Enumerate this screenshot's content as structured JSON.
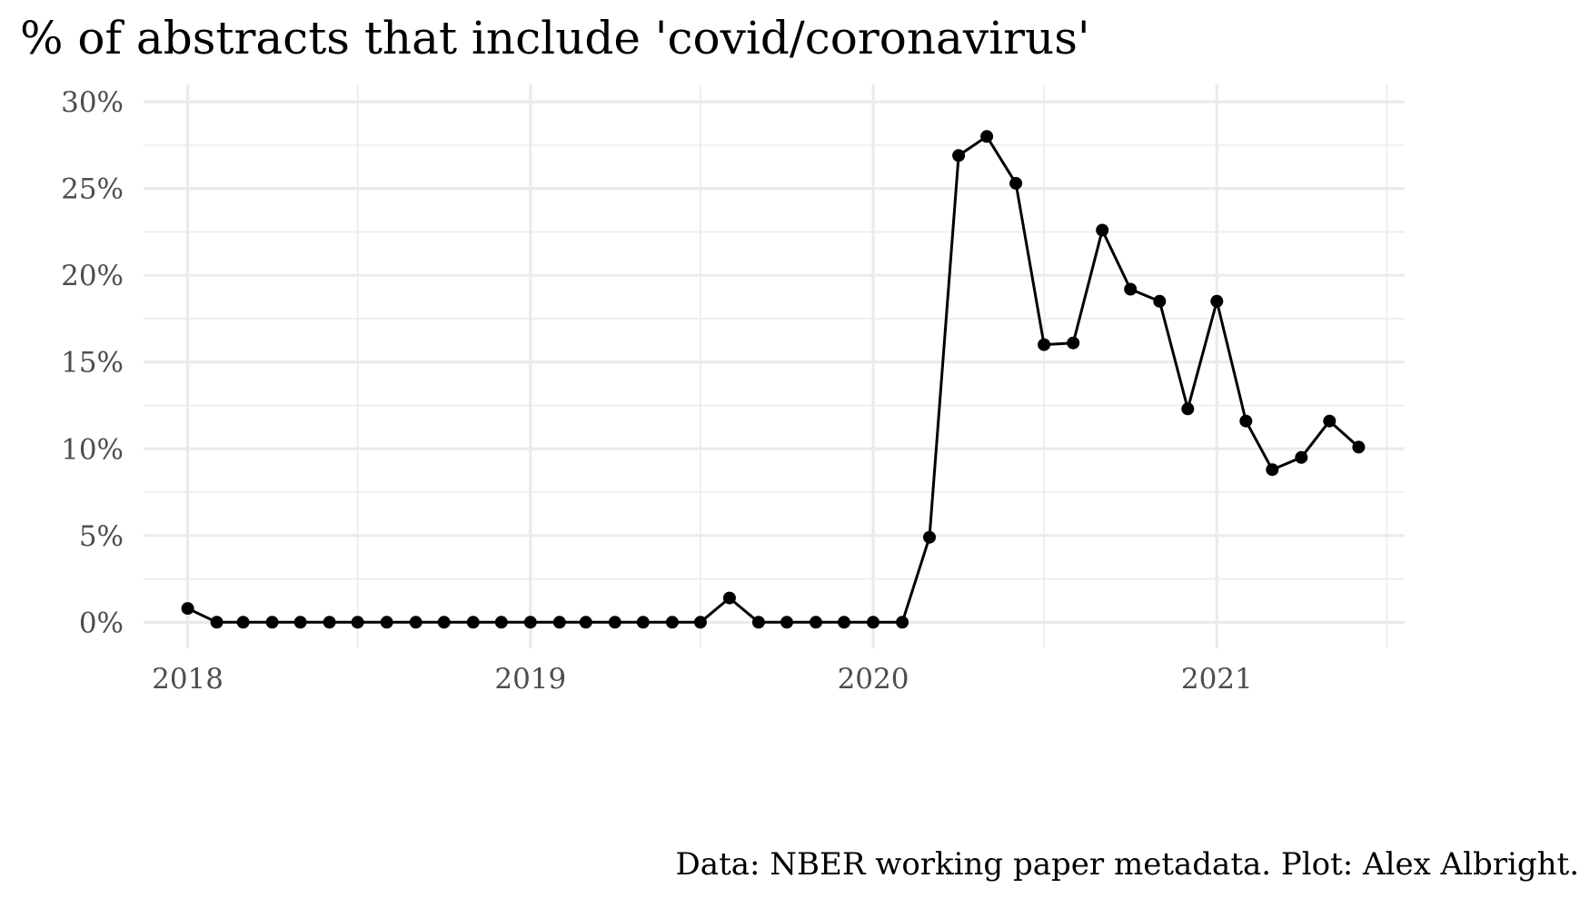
{
  "chart_data": {
    "type": "line",
    "title": "% of abstracts that include 'covid/coronavirus'",
    "caption": "Data: NBER working paper metadata. Plot: Alex Albright.",
    "xlabel": "",
    "ylabel": "",
    "x_unit": "month",
    "xlim": [
      "2017-11-15",
      "2021-07-20"
    ],
    "ylim": [
      -0.015,
      0.31
    ],
    "x_ticks": [
      {
        "value": "2018-01-01",
        "label": "2018"
      },
      {
        "value": "2019-01-01",
        "label": "2019"
      },
      {
        "value": "2020-01-01",
        "label": "2020"
      },
      {
        "value": "2021-01-01",
        "label": "2021"
      }
    ],
    "x_minor_ticks": [
      "2018-07-01",
      "2019-07-01",
      "2020-07-01",
      "2021-07-01"
    ],
    "y_ticks": [
      {
        "value": 0,
        "label": "0%"
      },
      {
        "value": 0.05,
        "label": "5%"
      },
      {
        "value": 0.1,
        "label": "10%"
      },
      {
        "value": 0.15,
        "label": "15%"
      },
      {
        "value": 0.2,
        "label": "20%"
      },
      {
        "value": 0.25,
        "label": "25%"
      },
      {
        "value": 0.3,
        "label": "30%"
      }
    ],
    "y_minor_ticks": [
      0.025,
      0.075,
      0.125,
      0.175,
      0.225,
      0.275
    ],
    "grid": true,
    "legend": "none",
    "colors": {
      "line": "#000000",
      "grid": "#ebebeb",
      "tick_text": "#4d4d4d"
    },
    "series": [
      {
        "x": [
          "2018-01-01",
          "2018-02-01",
          "2018-03-01",
          "2018-04-01",
          "2018-05-01",
          "2018-06-01",
          "2018-07-01",
          "2018-08-01",
          "2018-09-01",
          "2018-10-01",
          "2018-11-01",
          "2018-12-01",
          "2019-01-01",
          "2019-02-01",
          "2019-03-01",
          "2019-04-01",
          "2019-05-01",
          "2019-06-01",
          "2019-07-01",
          "2019-08-01",
          "2019-09-01",
          "2019-10-01",
          "2019-11-01",
          "2019-12-01",
          "2020-01-01",
          "2020-02-01",
          "2020-03-01",
          "2020-04-01",
          "2020-05-01",
          "2020-06-01",
          "2020-07-01",
          "2020-08-01",
          "2020-09-01",
          "2020-10-01",
          "2020-11-01",
          "2020-12-01",
          "2021-01-01",
          "2021-02-01",
          "2021-03-01",
          "2021-04-01",
          "2021-05-01",
          "2021-06-01"
        ],
        "values": [
          0.008,
          0,
          0,
          0,
          0,
          0,
          0,
          0,
          0,
          0,
          0,
          0,
          0,
          0,
          0,
          0,
          0,
          0,
          0,
          0.014,
          0,
          0,
          0,
          0,
          0,
          0,
          0.049,
          0.269,
          0.28,
          0.253,
          0.16,
          0.161,
          0.226,
          0.192,
          0.185,
          0.123,
          0.185,
          0.116,
          0.088,
          0.095,
          0.116,
          0.101
        ]
      }
    ]
  }
}
